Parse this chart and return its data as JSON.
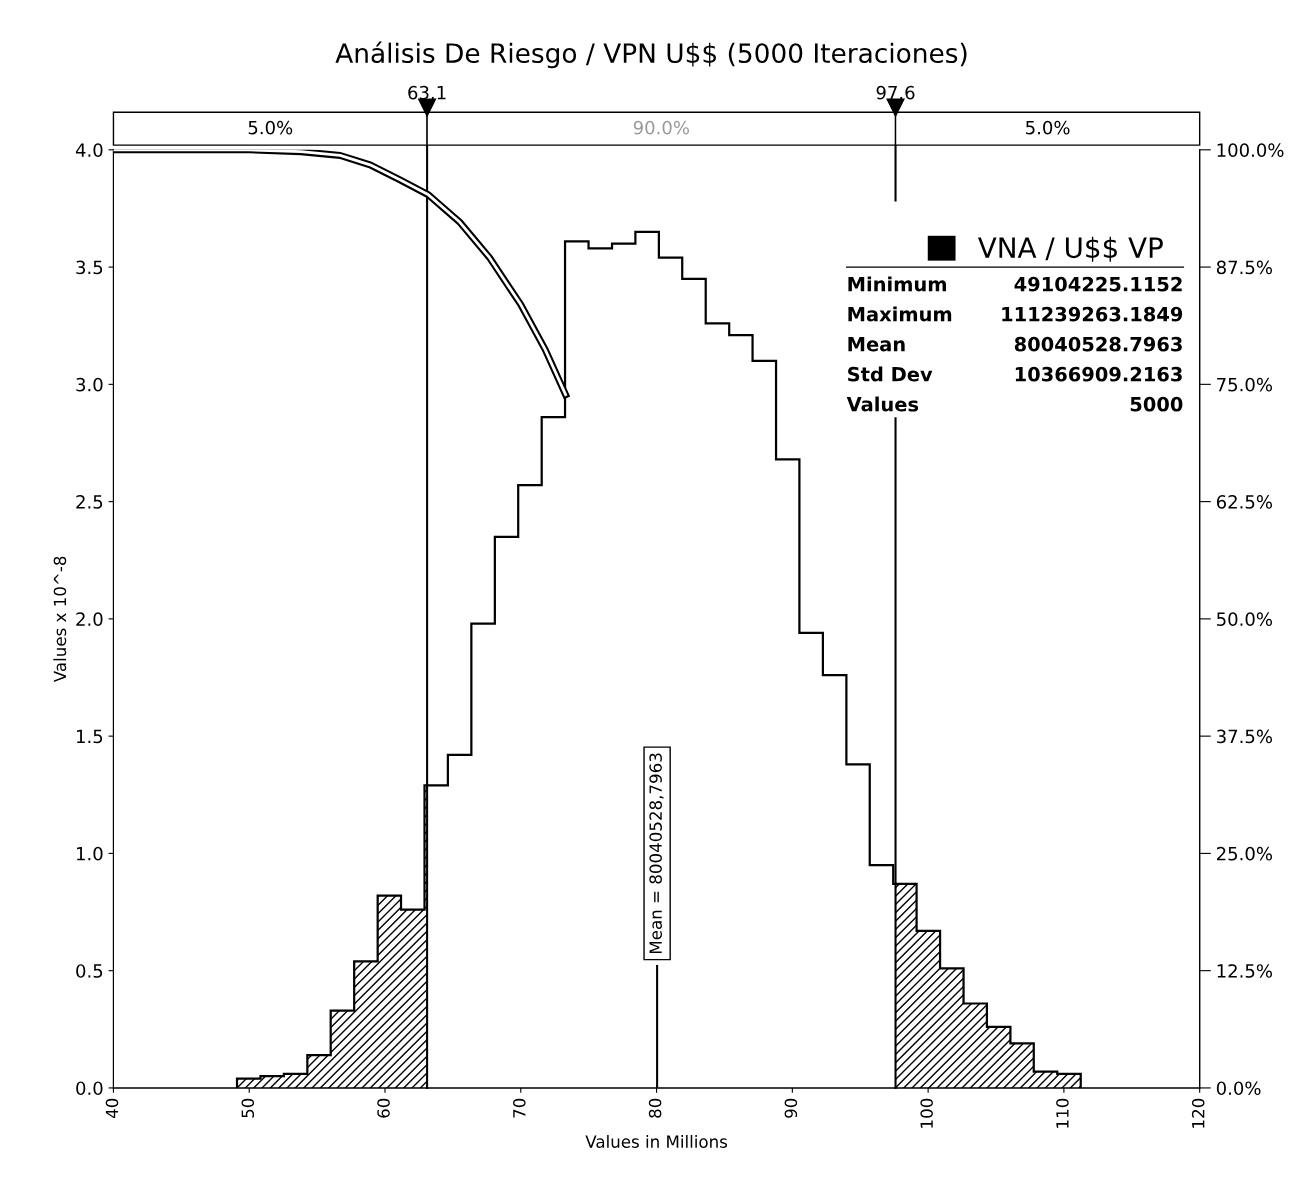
{
  "chart_data": {
    "type": "histogram",
    "title": "Análisis De Riesgo / VPN U$$ (5000 Iteraciones)",
    "xlabel": "Values in Millions",
    "ylabel": "Values x 10^-8",
    "bins": [
      49.1,
      50.83,
      52.55,
      54.28,
      56.0,
      57.73,
      59.46,
      61.18,
      62.91,
      64.63,
      66.36,
      68.09,
      69.81,
      71.54,
      73.26,
      74.99,
      76.72,
      78.44,
      80.17,
      81.89,
      83.62,
      85.35,
      87.07,
      88.8,
      90.52,
      92.25,
      93.98,
      95.7,
      97.43,
      99.15,
      100.88,
      102.61,
      104.33,
      106.06,
      107.78,
      109.51,
      111.24
    ],
    "series": [
      {
        "name": "VNA / U$$ VP",
        "color": "#000000",
        "values": [
          0.04,
          0.05,
          0.06,
          0.14,
          0.33,
          0.54,
          0.82,
          0.76,
          1.29,
          1.42,
          1.98,
          2.35,
          2.57,
          2.86,
          3.61,
          3.58,
          3.6,
          3.65,
          3.54,
          3.45,
          3.26,
          3.21,
          3.1,
          2.68,
          1.94,
          1.76,
          1.38,
          0.95,
          0.87,
          0.67,
          0.51,
          0.36,
          0.26,
          0.19,
          0.07,
          0.06
        ]
      },
      {
        "type": "line",
        "axis": "y2",
        "color": "#000000",
        "x": [
          40,
          50,
          53.8,
          56.7,
          58.9,
          61.1,
          63.2,
          65.5,
          67.7,
          70.0,
          71.8,
          73.3
        ],
        "values": [
          100,
          100,
          99.8,
          99.4,
          98.4,
          96.8,
          95.2,
          92.3,
          88.5,
          83.5,
          78.7,
          73.9
        ]
      }
    ],
    "xlim": [
      40,
      120
    ],
    "xticks": [
      40,
      50,
      60,
      70,
      80,
      90,
      100,
      110,
      120
    ],
    "ylim": [
      0,
      4
    ],
    "yticks": [
      {
        "value": 0,
        "label": "0.0"
      },
      {
        "value": 0.5,
        "label": "0.5"
      },
      {
        "value": 1,
        "label": "1.0"
      },
      {
        "value": 1.5,
        "label": "1.5"
      },
      {
        "value": 2,
        "label": "2.0"
      },
      {
        "value": 2.5,
        "label": "2.5"
      },
      {
        "value": 3,
        "label": "3.0"
      },
      {
        "value": 3.5,
        "label": "3.5"
      },
      {
        "value": 4,
        "label": "4.0"
      }
    ],
    "y2lim": [
      0,
      100
    ],
    "y2ticks": [
      {
        "value": 0,
        "label": "0.0%"
      },
      {
        "value": 12.5,
        "label": "12.5%"
      },
      {
        "value": 25,
        "label": "25.0%"
      },
      {
        "value": 37.5,
        "label": "37.5%"
      },
      {
        "value": 50,
        "label": "50.0%"
      },
      {
        "value": 62.5,
        "label": "62.5%"
      },
      {
        "value": 75,
        "label": "75.0%"
      },
      {
        "value": 87.5,
        "label": "87.5%"
      },
      {
        "value": 100,
        "label": "100.0%"
      }
    ],
    "ref_lines": [
      {
        "axis": "x",
        "value": 63.1,
        "label": "63.1",
        "color": "#000000"
      },
      {
        "axis": "x",
        "value": 97.6,
        "label": "97.6",
        "color": "#000000"
      },
      {
        "axis": "x",
        "value": 80.04,
        "label": "Mean = 80040528,7963",
        "color": "#000000",
        "line_style": "solid"
      }
    ],
    "bands": [
      {
        "axis": "x",
        "from": 40,
        "to": 63.1,
        "label": "5.0%",
        "color": "#000000"
      },
      {
        "axis": "x",
        "from": 97.6,
        "to": 120,
        "label": "5.0%",
        "color": "#000000"
      }
    ],
    "annotations": [
      "90.0%",
      "Minimum",
      "49104225.1152",
      "Maximum",
      "111239263.1849",
      "Mean",
      "80040528.7963",
      "Std Dev",
      "10366909.2163",
      "Values",
      "5000"
    ],
    "legend": "top right",
    "grid": false
  }
}
